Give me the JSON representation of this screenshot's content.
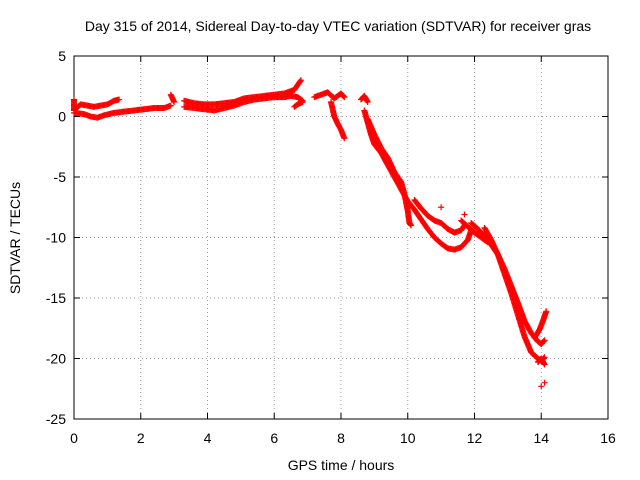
{
  "chart_data": {
    "type": "scatter",
    "title": "Day 315 of 2014, Sidereal Day-to-day VTEC variation (SDTVAR) for receiver gras",
    "xlabel": "GPS time / hours",
    "ylabel": "SDTVAR / TECUs",
    "xlim": [
      0,
      16
    ],
    "ylim": [
      -25,
      5
    ],
    "xticks": [
      0,
      2,
      4,
      6,
      8,
      10,
      12,
      14,
      16
    ],
    "yticks": [
      5,
      0,
      -5,
      -10,
      -15,
      -20,
      -25
    ],
    "xtick_labels": [
      "0",
      "2",
      "4",
      "6",
      "8",
      "10",
      "12",
      "14",
      "16"
    ],
    "ytick_labels": [
      "5",
      "0",
      "-5",
      "-10",
      "-15",
      "-20",
      "-25"
    ],
    "grid": true,
    "marker": "+",
    "series": [
      {
        "name": "SDTVAR",
        "color": "#ff0000",
        "segments": [
          [
            [
              0.0,
              1.4
            ],
            [
              0.0,
              0.5
            ],
            [
              0.2,
              1.0
            ],
            [
              0.4,
              0.9
            ],
            [
              0.6,
              0.8
            ],
            [
              0.8,
              0.9
            ],
            [
              1.0,
              1.0
            ],
            [
              1.2,
              1.3
            ],
            [
              1.35,
              1.4
            ]
          ],
          [
            [
              0.0,
              0.3
            ],
            [
              0.3,
              0.2
            ],
            [
              0.5,
              0.0
            ],
            [
              0.7,
              -0.1
            ],
            [
              0.9,
              0.1
            ],
            [
              1.2,
              0.3
            ],
            [
              1.5,
              0.4
            ],
            [
              1.8,
              0.5
            ],
            [
              2.1,
              0.6
            ],
            [
              2.4,
              0.7
            ],
            [
              2.7,
              0.7
            ],
            [
              2.9,
              0.9
            ]
          ],
          [
            [
              2.9,
              1.8
            ],
            [
              3.0,
              1.2
            ]
          ],
          [
            [
              3.3,
              1.3
            ],
            [
              3.6,
              1.1
            ],
            [
              3.9,
              1.0
            ],
            [
              4.2,
              1.0
            ],
            [
              4.5,
              1.1
            ],
            [
              4.8,
              1.2
            ],
            [
              5.1,
              1.5
            ],
            [
              5.4,
              1.6
            ],
            [
              5.7,
              1.7
            ],
            [
              6.0,
              1.8
            ],
            [
              6.3,
              1.9
            ],
            [
              6.6,
              2.2
            ],
            [
              6.8,
              3.0
            ]
          ],
          [
            [
              3.3,
              0.8
            ],
            [
              3.6,
              0.7
            ],
            [
              3.9,
              0.6
            ],
            [
              4.2,
              0.5
            ],
            [
              4.5,
              0.7
            ],
            [
              4.8,
              0.9
            ],
            [
              5.1,
              1.2
            ],
            [
              5.4,
              1.4
            ],
            [
              5.7,
              1.5
            ],
            [
              6.0,
              1.6
            ],
            [
              6.3,
              1.6
            ],
            [
              6.5,
              1.7
            ],
            [
              6.7,
              1.6
            ],
            [
              6.85,
              1.3
            ]
          ],
          [
            [
              6.6,
              0.8
            ],
            [
              6.7,
              1.0
            ],
            [
              6.85,
              1.2
            ]
          ],
          [
            [
              7.2,
              1.6
            ],
            [
              7.4,
              1.8
            ],
            [
              7.6,
              2.0
            ],
            [
              7.8,
              1.5
            ],
            [
              8.0,
              1.9
            ],
            [
              8.1,
              1.6
            ]
          ],
          [
            [
              7.7,
              1.2
            ],
            [
              7.8,
              0.0
            ],
            [
              7.9,
              -0.6
            ],
            [
              8.0,
              -1.1
            ],
            [
              8.1,
              -1.8
            ]
          ],
          [
            [
              8.6,
              1.4
            ],
            [
              8.7,
              1.7
            ],
            [
              8.8,
              1.2
            ]
          ],
          [
            [
              8.7,
              0.5
            ],
            [
              8.8,
              -0.5
            ],
            [
              8.9,
              -1.5
            ],
            [
              9.0,
              -2.3
            ],
            [
              9.2,
              -3.0
            ],
            [
              9.4,
              -4.0
            ],
            [
              9.6,
              -5.0
            ],
            [
              9.8,
              -6.0
            ],
            [
              10.0,
              -7.0
            ],
            [
              10.2,
              -7.7
            ],
            [
              10.4,
              -8.5
            ],
            [
              10.6,
              -9.3
            ],
            [
              10.8,
              -10.0
            ],
            [
              11.0,
              -10.5
            ],
            [
              11.2,
              -10.9
            ],
            [
              11.4,
              -11.0
            ],
            [
              11.6,
              -10.8
            ],
            [
              11.8,
              -10.2
            ],
            [
              11.9,
              -9.4
            ]
          ],
          [
            [
              8.8,
              -0.2
            ],
            [
              9.0,
              -1.5
            ],
            [
              9.2,
              -2.6
            ],
            [
              9.4,
              -3.4
            ],
            [
              9.6,
              -4.6
            ],
            [
              9.8,
              -5.4
            ],
            [
              9.9,
              -6.4
            ],
            [
              10.0,
              -7.8
            ],
            [
              10.05,
              -8.8
            ],
            [
              10.1,
              -9.0
            ]
          ],
          [
            [
              10.2,
              -6.9
            ],
            [
              10.4,
              -7.6
            ],
            [
              10.6,
              -8.2
            ],
            [
              10.8,
              -8.6
            ],
            [
              11.0,
              -8.8
            ],
            [
              11.2,
              -9.3
            ],
            [
              11.4,
              -9.6
            ],
            [
              11.6,
              -9.4
            ],
            [
              11.7,
              -9.0
            ]
          ],
          [
            [
              11.6,
              -8.6
            ],
            [
              11.8,
              -9.1
            ],
            [
              12.0,
              -9.6
            ],
            [
              12.2,
              -10.0
            ],
            [
              12.4,
              -10.4
            ]
          ],
          [
            [
              11.9,
              -8.8
            ],
            [
              12.1,
              -9.3
            ],
            [
              12.3,
              -9.9
            ],
            [
              12.5,
              -10.6
            ],
            [
              12.7,
              -11.4
            ],
            [
              12.9,
              -12.6
            ],
            [
              13.1,
              -14.0
            ],
            [
              13.3,
              -15.4
            ],
            [
              13.5,
              -16.9
            ],
            [
              13.7,
              -17.9
            ],
            [
              13.9,
              -18.6
            ],
            [
              14.0,
              -18.8
            ],
            [
              14.1,
              -18.5
            ]
          ],
          [
            [
              12.3,
              -9.2
            ],
            [
              12.5,
              -10.2
            ],
            [
              12.7,
              -11.4
            ],
            [
              12.9,
              -13.0
            ],
            [
              13.1,
              -14.6
            ],
            [
              13.3,
              -16.4
            ],
            [
              13.5,
              -18.2
            ],
            [
              13.7,
              -19.5
            ],
            [
              13.9,
              -20.0
            ],
            [
              14.0,
              -20.2
            ],
            [
              14.1,
              -19.9
            ]
          ],
          [
            [
              13.8,
              -18.3
            ],
            [
              13.95,
              -17.6
            ],
            [
              14.05,
              -16.9
            ],
            [
              14.15,
              -16.1
            ]
          ],
          [
            [
              13.9,
              -20.3
            ],
            [
              14.0,
              -20.0
            ],
            [
              14.1,
              -20.5
            ]
          ]
        ],
        "isolated_points": [
          [
            11.0,
            -7.5
          ],
          [
            11.7,
            -8.1
          ],
          [
            14.0,
            -22.3
          ],
          [
            14.1,
            -22.0
          ]
        ]
      }
    ]
  }
}
